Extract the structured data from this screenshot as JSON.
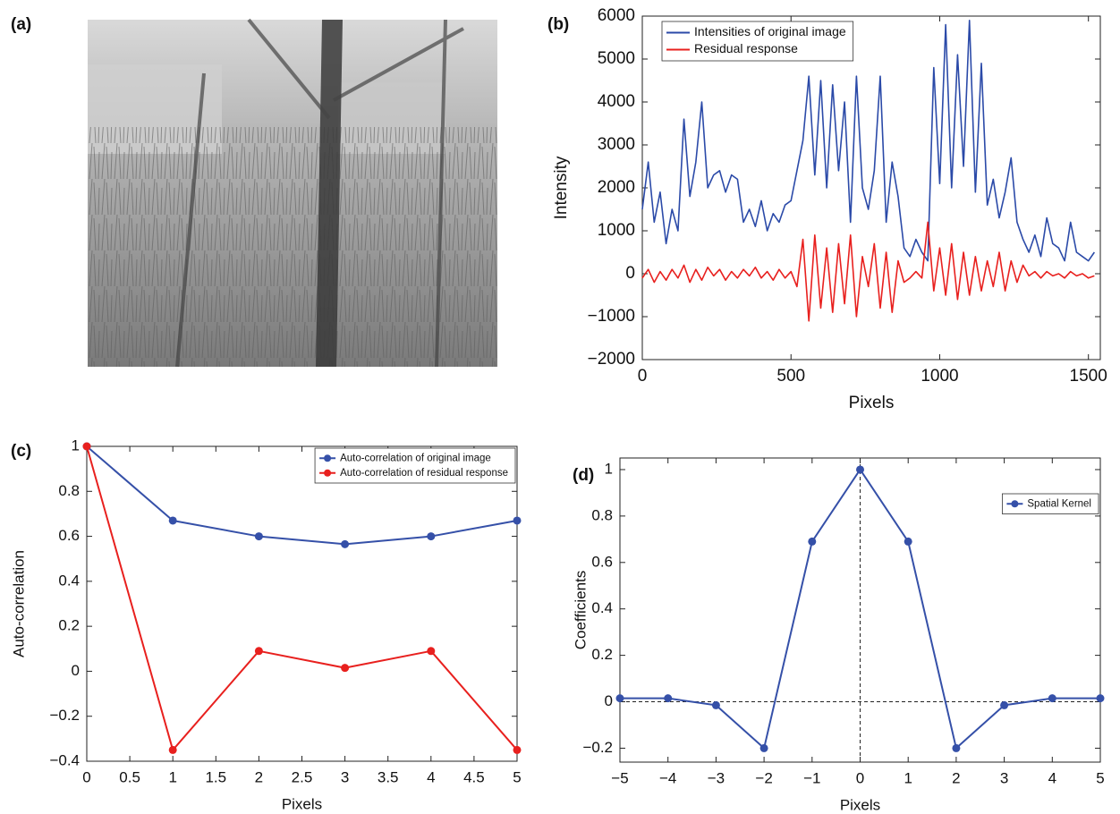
{
  "chart_data": [
    {
      "type": "image",
      "panel_label": "(a)"
    },
    {
      "type": "line",
      "panel_label": "(b)",
      "xlabel": "Pixels",
      "ylabel": "Intensity",
      "legend": "upper left",
      "markers": false,
      "xlim": [
        0,
        1540
      ],
      "xticks": [
        0,
        500,
        1000,
        1500
      ],
      "ylim": [
        -2000,
        6000
      ],
      "yticks": [
        {
          "value": -2000,
          "label": "−2000"
        },
        {
          "value": -1000,
          "label": "−1000"
        },
        0,
        1000,
        2000,
        3000,
        4000,
        5000,
        6000
      ],
      "x": [
        0,
        20,
        40,
        60,
        80,
        100,
        120,
        140,
        160,
        180,
        200,
        220,
        240,
        260,
        280,
        300,
        320,
        340,
        360,
        380,
        400,
        420,
        440,
        460,
        480,
        500,
        520,
        540,
        560,
        580,
        600,
        620,
        640,
        660,
        680,
        700,
        720,
        740,
        760,
        780,
        800,
        820,
        840,
        860,
        880,
        900,
        920,
        940,
        960,
        980,
        1000,
        1020,
        1040,
        1060,
        1080,
        1100,
        1120,
        1140,
        1160,
        1180,
        1200,
        1220,
        1240,
        1260,
        1280,
        1300,
        1320,
        1340,
        1360,
        1380,
        1400,
        1420,
        1440,
        1460,
        1480,
        1500,
        1520
      ],
      "series": [
        {
          "name": "Intensities of original image",
          "color": "#2b4aa8",
          "values": [
            1500,
            2600,
            1200,
            1900,
            700,
            1500,
            1000,
            3600,
            1800,
            2600,
            4000,
            2000,
            2300,
            2400,
            1900,
            2300,
            2200,
            1200,
            1500,
            1100,
            1700,
            1000,
            1400,
            1200,
            1600,
            1700,
            2400,
            3100,
            4600,
            2300,
            4500,
            2000,
            4400,
            2400,
            4000,
            1200,
            4600,
            2000,
            1500,
            2400,
            4600,
            1200,
            2600,
            1800,
            600,
            400,
            800,
            500,
            300,
            4800,
            2100,
            5800,
            2000,
            5100,
            2500,
            5900,
            1900,
            4900,
            1600,
            2200,
            1300,
            1900,
            2700,
            1200,
            800,
            500,
            900,
            400,
            1300,
            700,
            600,
            300,
            1200,
            500,
            400,
            300,
            500
          ]
        },
        {
          "name": "Residual response",
          "color": "#e8201e",
          "values": [
            -100,
            100,
            -200,
            50,
            -150,
            100,
            -100,
            200,
            -200,
            100,
            -150,
            150,
            -50,
            100,
            -150,
            50,
            -100,
            100,
            -50,
            150,
            -100,
            50,
            -150,
            100,
            -100,
            50,
            -300,
            800,
            -1100,
            900,
            -800,
            600,
            -900,
            700,
            -700,
            900,
            -1000,
            400,
            -300,
            700,
            -800,
            500,
            -900,
            300,
            -200,
            -100,
            50,
            -100,
            1200,
            -400,
            600,
            -500,
            700,
            -600,
            500,
            -500,
            400,
            -400,
            300,
            -300,
            500,
            -400,
            300,
            -200,
            200,
            -50,
            50,
            -100,
            50,
            -50,
            0,
            -100,
            50,
            -50,
            0,
            -100,
            -50
          ]
        }
      ]
    },
    {
      "type": "line",
      "panel_label": "(c)",
      "xlabel": "Pixels",
      "ylabel": "Auto-correlation",
      "legend": "upper right",
      "markers": true,
      "xlim": [
        0,
        5
      ],
      "xticks": [
        0,
        0.5,
        1,
        1.5,
        2,
        2.5,
        3,
        3.5,
        4,
        4.5,
        5
      ],
      "ylim": [
        -0.4,
        1
      ],
      "yticks": [
        {
          "value": -0.4,
          "label": "−0.4"
        },
        {
          "value": -0.2,
          "label": "−0.2"
        },
        0,
        0.2,
        0.4,
        0.6,
        0.8,
        1
      ],
      "x": [
        0,
        1,
        2,
        3,
        4,
        5
      ],
      "series": [
        {
          "name": "Auto-correlation of original image",
          "color": "#3550a8",
          "values": [
            1,
            0.67,
            0.6,
            0.565,
            0.6,
            0.67
          ]
        },
        {
          "name": "Auto-correlation of residual response",
          "color": "#e8201e",
          "values": [
            1,
            -0.35,
            0.09,
            0.015,
            0.09,
            -0.35
          ]
        }
      ]
    },
    {
      "type": "line",
      "panel_label": "(d)",
      "xlabel": "Pixels",
      "ylabel": "Coefficients",
      "legend": "upper right",
      "markers": true,
      "zero_lines": true,
      "xlim": [
        -5,
        5
      ],
      "xticks": [
        {
          "value": -5,
          "label": "−5"
        },
        {
          "value": -4,
          "label": "−4"
        },
        {
          "value": -3,
          "label": "−3"
        },
        {
          "value": -2,
          "label": "−2"
        },
        {
          "value": -1,
          "label": "−1"
        },
        0,
        1,
        2,
        3,
        4,
        5
      ],
      "ylim": [
        -0.26,
        1.05
      ],
      "yticks": [
        {
          "value": -0.2,
          "label": "−0.2"
        },
        0,
        0.2,
        0.4,
        0.6,
        0.8,
        1
      ],
      "x": [
        -5,
        -4,
        -3,
        -2,
        -1,
        0,
        1,
        2,
        3,
        4,
        5
      ],
      "series": [
        {
          "name": "Spatial Kernel",
          "color": "#3550a8",
          "values": [
            0.015,
            0.015,
            -0.015,
            -0.2,
            0.69,
            1,
            0.69,
            -0.2,
            -0.015,
            0.015,
            0.015
          ]
        }
      ]
    }
  ]
}
